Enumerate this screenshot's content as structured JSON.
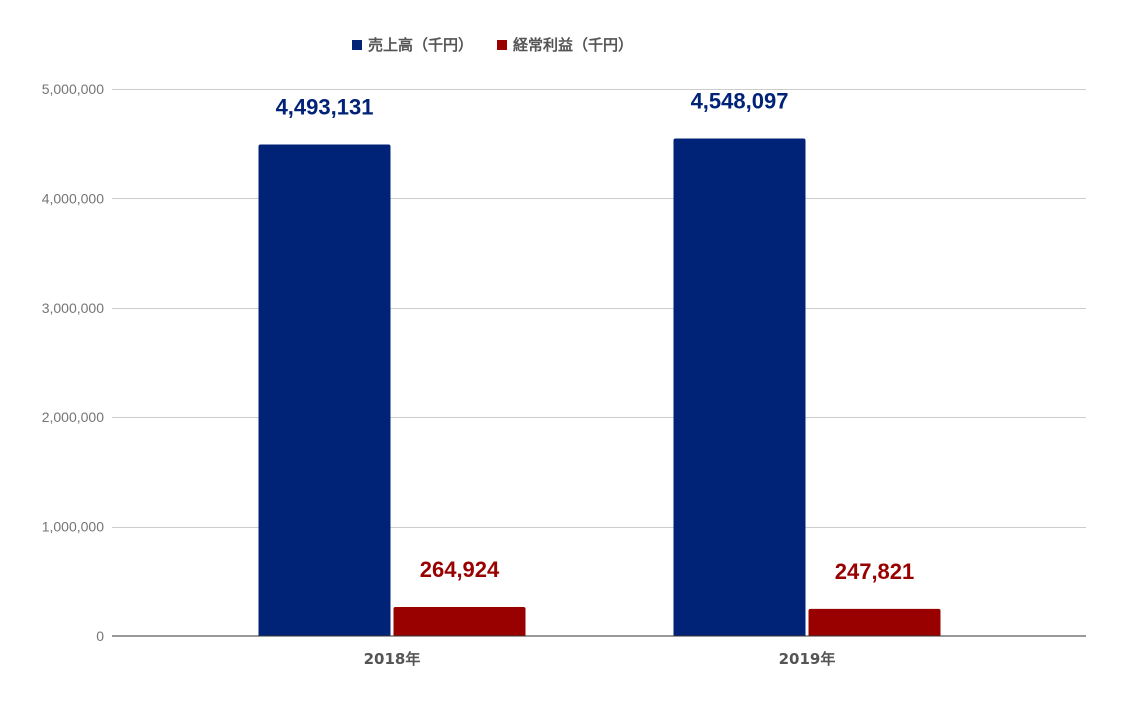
{
  "chart_data": {
    "type": "bar",
    "categories": [
      "2018年",
      "2019年"
    ],
    "series": [
      {
        "name": "売上高（千円）",
        "values": [
          4493131,
          4548097
        ],
        "color": "#002277",
        "labels": [
          "4,493,131",
          "4,548,097"
        ]
      },
      {
        "name": "経常利益（千円）",
        "values": [
          264924,
          247821
        ],
        "color": "#990000",
        "labels": [
          "264,924",
          "247,821"
        ]
      }
    ],
    "ylim": [
      0,
      5000000
    ],
    "yticks": [
      0,
      1000000,
      2000000,
      3000000,
      4000000,
      5000000
    ],
    "ytick_labels": [
      "0",
      "1,000,000",
      "2,000,000",
      "3,000,000",
      "4,000,000",
      "5,000,000"
    ],
    "grid": true,
    "legend_position": "top-center",
    "title": "",
    "xlabel": "",
    "ylabel": ""
  }
}
